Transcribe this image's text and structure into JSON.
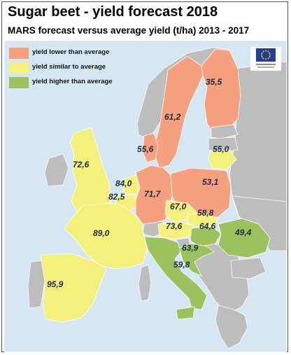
{
  "title": "Sugar beet - yield forecast 2018",
  "subtitle": "MARS forecast versus average yield (t/ha) 2013 - 2017",
  "colors": {
    "lower": "#f5a07e",
    "similar": "#f5f07c",
    "higher": "#9bc35d",
    "no_data": "#bdbdbd",
    "sea": "#d4e7f3",
    "border": "#ffffff"
  },
  "legend": [
    {
      "key": "lower",
      "label": "yield lower than average"
    },
    {
      "key": "similar",
      "label": "yield similar to average"
    },
    {
      "key": "higher",
      "label": "yield higher than average"
    }
  ],
  "logo": {
    "icon": "eu-flag-icon",
    "caption": "European Commission"
  },
  "regions": [
    {
      "id": "sweden",
      "value": "61,2",
      "category": "lower"
    },
    {
      "id": "finland",
      "value": "35,5",
      "category": "lower"
    },
    {
      "id": "denmark",
      "value": "55,6",
      "category": "lower"
    },
    {
      "id": "lithuania",
      "value": "55,0",
      "category": "similar"
    },
    {
      "id": "uk",
      "value": "72,6",
      "category": "similar"
    },
    {
      "id": "netherlands",
      "value": "84,0",
      "category": "similar"
    },
    {
      "id": "belgium",
      "value": "82,5",
      "category": "similar"
    },
    {
      "id": "germany",
      "value": "71,7",
      "category": "lower"
    },
    {
      "id": "poland",
      "value": "53,1",
      "category": "lower"
    },
    {
      "id": "czechia",
      "value": "67,0",
      "category": "similar"
    },
    {
      "id": "slovakia",
      "value": "58,8",
      "category": "similar"
    },
    {
      "id": "france",
      "value": "89,0",
      "category": "similar"
    },
    {
      "id": "austria",
      "value": "73,6",
      "category": "similar"
    },
    {
      "id": "hungary",
      "value": "64,6",
      "category": "higher"
    },
    {
      "id": "romania",
      "value": "49,4",
      "category": "higher"
    },
    {
      "id": "croatia",
      "value": "63,9",
      "category": "higher"
    },
    {
      "id": "italy",
      "value": "59,8",
      "category": "higher"
    },
    {
      "id": "spain",
      "value": "95,9",
      "category": "similar"
    }
  ]
}
